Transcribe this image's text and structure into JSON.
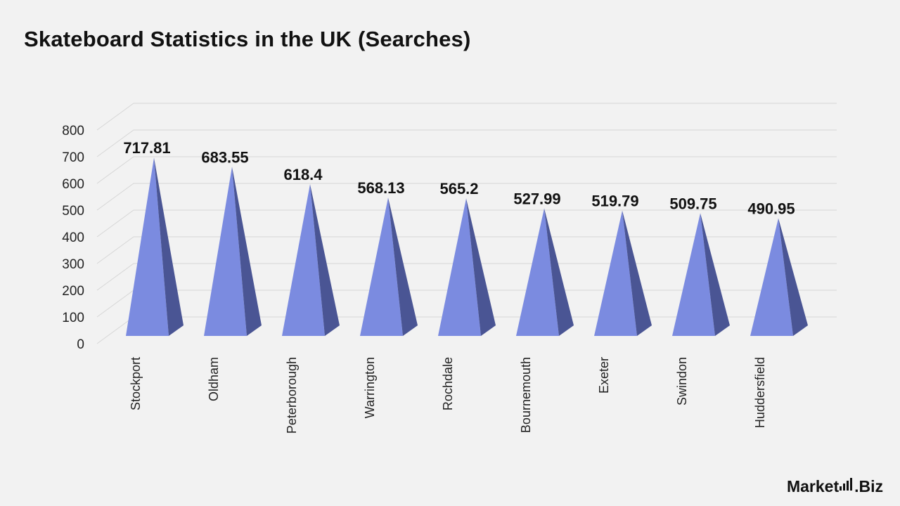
{
  "chart_data": {
    "type": "bar",
    "title": "Skateboard Statistics in the UK (Searches)",
    "categories": [
      "Stockport",
      "Oldham",
      "Peterborough",
      "Warrington",
      "Rochdale",
      "Bournemouth",
      "Exeter",
      "Swindon",
      "Huddersfield"
    ],
    "values": [
      717.81,
      683.55,
      618.4,
      568.13,
      565.2,
      527.99,
      519.79,
      509.75,
      490.95
    ],
    "value_labels": [
      "717.81",
      "683.55",
      "618.4",
      "568.13",
      "565.2",
      "527.99",
      "519.79",
      "509.75",
      "490.95"
    ],
    "y_ticks": [
      "0",
      "100",
      "200",
      "300",
      "400",
      "500",
      "600",
      "700",
      "800"
    ],
    "ylim": [
      0,
      800
    ],
    "bar_shape": "pyramid",
    "grid": true,
    "xlabel": "",
    "ylabel": "",
    "colors": {
      "front": "#7b8be0",
      "side": "#4a5594",
      "grid": "#d6d6d6"
    }
  },
  "brand": {
    "left": "Market",
    "right": ".Biz"
  }
}
